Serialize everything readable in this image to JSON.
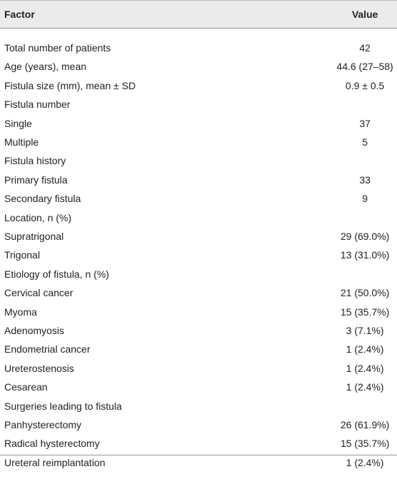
{
  "table": {
    "header": [
      "Factor",
      "Value"
    ],
    "rows": [
      [
        "Total number of patients",
        "42"
      ],
      [
        "Age (years), mean",
        "44.6 (27–58)"
      ],
      [
        "Fistula size (mm), mean ± SD",
        "0.9 ± 0.5"
      ],
      [
        "Fistula number"
      ],
      [
        "Single",
        "37"
      ],
      [
        "Multiple",
        "5"
      ],
      [
        "Fistula history"
      ],
      [
        "Primary fistula",
        "33"
      ],
      [
        "Secondary fistula",
        "9"
      ],
      [
        "Location, n (%)"
      ],
      [
        "Supratrigonal",
        "29 (69.0%)"
      ],
      [
        "Trigonal",
        "13 (31.0%)"
      ],
      [
        "Etiology of fistula, n (%)"
      ],
      [
        "Cervical cancer",
        "21 (50.0%)"
      ],
      [
        "Myoma",
        "15 (35.7%)"
      ],
      [
        "Adenomyosis",
        "3 (7.1%)"
      ],
      [
        "Endometrial cancer",
        "1 (2.4%)"
      ],
      [
        "Ureterostenosis",
        "1 (2.4%)"
      ],
      [
        "Cesarean",
        "1 (2.4%)"
      ],
      [
        "Surgeries leading to fistula"
      ],
      [
        "Panhysterectomy",
        "26 (61.9%)"
      ],
      [
        "Radical hysterectomy",
        "15 (35.7%)"
      ],
      [
        "Ureteral reimplantation",
        "1 (2.4%)"
      ]
    ]
  }
}
